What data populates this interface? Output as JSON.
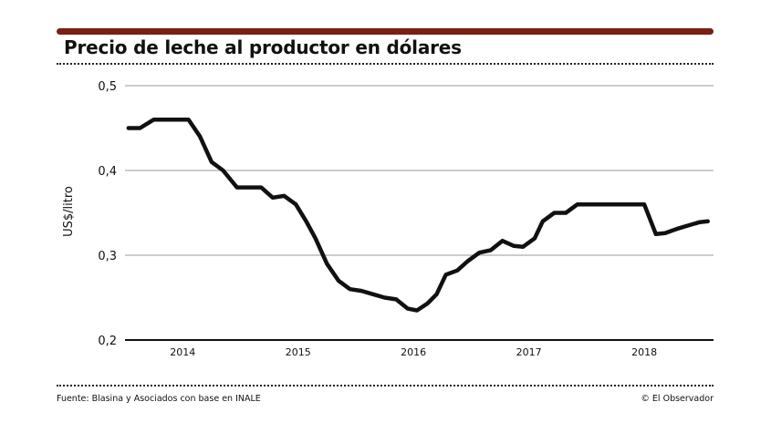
{
  "header": {
    "title": "Precio de leche al productor en dólares",
    "bar_color": "#7a1f14"
  },
  "footer": {
    "source": "Fuente: Blasina y Asociados con base en INALE",
    "credit": "© El Observador"
  },
  "chart_data": {
    "type": "line",
    "title": "Precio de leche al productor en dólares",
    "xlabel": "",
    "ylabel": "US$/litro",
    "ylim": [
      0.2,
      0.5
    ],
    "yticks": [
      0.2,
      0.3,
      0.4,
      0.5
    ],
    "ytick_labels": [
      "0,2",
      "0,3",
      "0,4",
      "0,5"
    ],
    "xlim": [
      2013.5,
      2018.6
    ],
    "xticks": [
      2014,
      2015,
      2016,
      2017,
      2018
    ],
    "xtick_labels": [
      "2014",
      "2015",
      "2016",
      "2017",
      "2018"
    ],
    "grid": "horizontal",
    "line_color": "#111111",
    "series": [
      {
        "x": [
          2013.53,
          2013.63,
          2013.75,
          2013.88,
          2014.05,
          2014.15,
          2014.25,
          2014.35,
          2014.47,
          2014.58,
          2014.68,
          2014.78,
          2014.88,
          2014.98,
          2015.07,
          2015.15,
          2015.25,
          2015.35,
          2015.45,
          2015.55,
          2015.65,
          2015.75,
          2015.85,
          2015.95,
          2016.03,
          2016.12,
          2016.2,
          2016.28,
          2016.38,
          2016.47,
          2016.57,
          2016.67,
          2016.77,
          2016.87,
          2016.95,
          2017.05,
          2017.12,
          2017.22,
          2017.32,
          2017.42,
          2017.52,
          2017.6,
          2017.7,
          2017.8,
          2017.9,
          2018.0,
          2018.1,
          2018.18,
          2018.28,
          2018.38,
          2018.48,
          2018.55
        ],
        "y": [
          0.45,
          0.45,
          0.46,
          0.46,
          0.46,
          0.44,
          0.41,
          0.4,
          0.38,
          0.38,
          0.38,
          0.368,
          0.37,
          0.36,
          0.34,
          0.32,
          0.29,
          0.27,
          0.26,
          0.258,
          0.254,
          0.25,
          0.248,
          0.237,
          0.235,
          0.243,
          0.254,
          0.277,
          0.282,
          0.293,
          0.303,
          0.306,
          0.317,
          0.311,
          0.31,
          0.32,
          0.34,
          0.35,
          0.35,
          0.36,
          0.36,
          0.36,
          0.36,
          0.36,
          0.36,
          0.36,
          0.325,
          0.326,
          0.331,
          0.335,
          0.339,
          0.34
        ]
      }
    ]
  }
}
